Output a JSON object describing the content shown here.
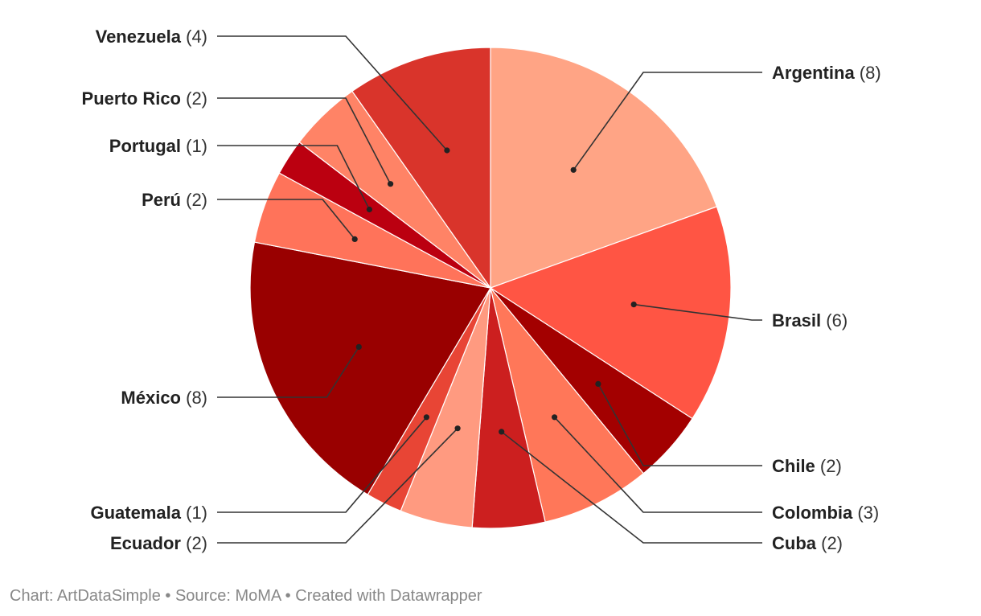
{
  "chart_data": {
    "type": "pie",
    "title": "",
    "slices": [
      {
        "label": "Argentina",
        "value": 8,
        "color": "#FFA485"
      },
      {
        "label": "Brasil",
        "value": 6,
        "color": "#FF5544"
      },
      {
        "label": "Chile",
        "value": 2,
        "color": "#A30000"
      },
      {
        "label": "Colombia",
        "value": 3,
        "color": "#FF7759"
      },
      {
        "label": "Cuba",
        "value": 2,
        "color": "#CC1F1F"
      },
      {
        "label": "Ecuador",
        "value": 2,
        "color": "#FF9A80"
      },
      {
        "label": "Guatemala",
        "value": 1,
        "color": "#E84535"
      },
      {
        "label": "México",
        "value": 8,
        "color": "#990000"
      },
      {
        "label": "Perú",
        "value": 2,
        "color": "#FF735A"
      },
      {
        "label": "Portugal",
        "value": 1,
        "color": "#BB0010"
      },
      {
        "label": "Puerto Rico",
        "value": 2,
        "color": "#FF8366"
      },
      {
        "label": "Venezuela",
        "value": 4,
        "color": "#D9342B"
      }
    ]
  },
  "footer": {
    "text": "Chart: ArtDataSimple • Source: MoMA • Created with Datawrapper"
  }
}
